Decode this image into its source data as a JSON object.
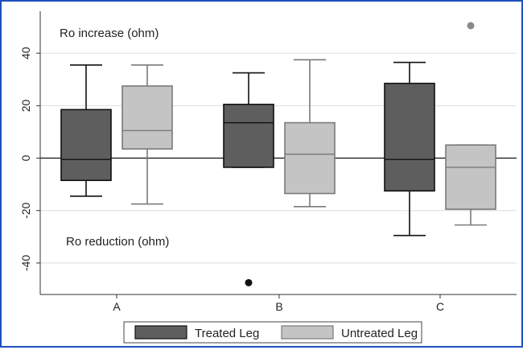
{
  "chart_data": {
    "type": "box",
    "categories": [
      "A",
      "B",
      "C"
    ],
    "ylim": [
      -52,
      56
    ],
    "yticks": [
      40,
      20,
      0,
      -20,
      -40
    ],
    "reference_line": 0,
    "grid": true,
    "legend_position": "bottom",
    "annotations": {
      "top": "Ro increase (ohm)",
      "bottom": "Ro reduction (ohm)"
    },
    "series": [
      {
        "name": "Treated Leg",
        "color": "#5e5e5e",
        "boxes": [
          {
            "whisker_low": -14.5,
            "q1": -8.5,
            "median": -0.5,
            "q3": 18.5,
            "whisker_high": 35.5,
            "outliers": []
          },
          {
            "whisker_low": -3.5,
            "q1": -3.5,
            "median": 13.5,
            "q3": 20.5,
            "whisker_high": 32.5,
            "outliers": [
              -47.5
            ]
          },
          {
            "whisker_low": -29.5,
            "q1": -12.5,
            "median": -0.5,
            "q3": 28.5,
            "whisker_high": 36.5,
            "outliers": []
          }
        ]
      },
      {
        "name": "Untreated Leg",
        "color": "#c4c4c4",
        "boxes": [
          {
            "whisker_low": -17.5,
            "q1": 3.5,
            "median": 10.5,
            "q3": 27.5,
            "whisker_high": 35.5,
            "outliers": []
          },
          {
            "whisker_low": -18.5,
            "q1": -13.5,
            "median": 1.5,
            "q3": 13.5,
            "whisker_high": 37.5,
            "outliers": []
          },
          {
            "whisker_low": -25.5,
            "q1": -19.5,
            "median": -3.5,
            "q3": 5.0,
            "whisker_high": 5.0,
            "outliers": [
              50.5
            ]
          }
        ]
      }
    ]
  }
}
